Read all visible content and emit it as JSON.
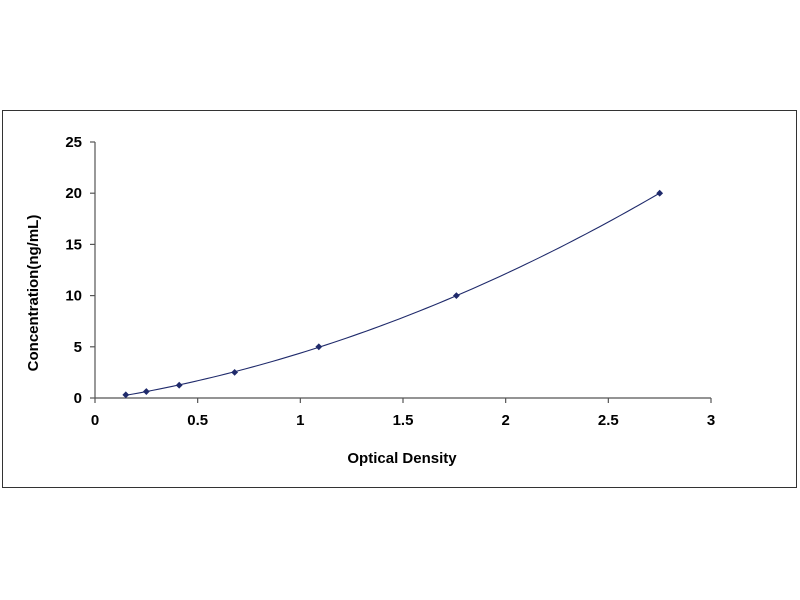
{
  "chart_data": {
    "type": "scatter",
    "title": "",
    "xlabel": "Optical Density",
    "ylabel": "Concentration(ng/mL)",
    "xlim": [
      0,
      3
    ],
    "ylim": [
      0,
      25
    ],
    "xticks": [
      0,
      0.5,
      1,
      1.5,
      2,
      2.5,
      3
    ],
    "xtick_labels": [
      "0",
      "0.5",
      "1",
      "1.5",
      "2",
      "2.5",
      "3"
    ],
    "yticks": [
      0,
      5,
      10,
      15,
      20,
      25
    ],
    "ytick_labels": [
      "0",
      "5",
      "10",
      "15",
      "20",
      "25"
    ],
    "grid": false,
    "legend": "none",
    "series": [
      {
        "points": [
          {
            "x": 0.15,
            "y": 0.31
          },
          {
            "x": 0.25,
            "y": 0.63
          },
          {
            "x": 0.41,
            "y": 1.25
          },
          {
            "x": 0.68,
            "y": 2.5
          },
          {
            "x": 1.09,
            "y": 5
          },
          {
            "x": 1.76,
            "y": 10
          },
          {
            "x": 2.75,
            "y": 20
          }
        ],
        "trendline": "polynomial fit through points"
      }
    ],
    "colors": {
      "marker": "#1f2a6b",
      "curve": "#1f2a6b",
      "axis": "#555555"
    }
  }
}
